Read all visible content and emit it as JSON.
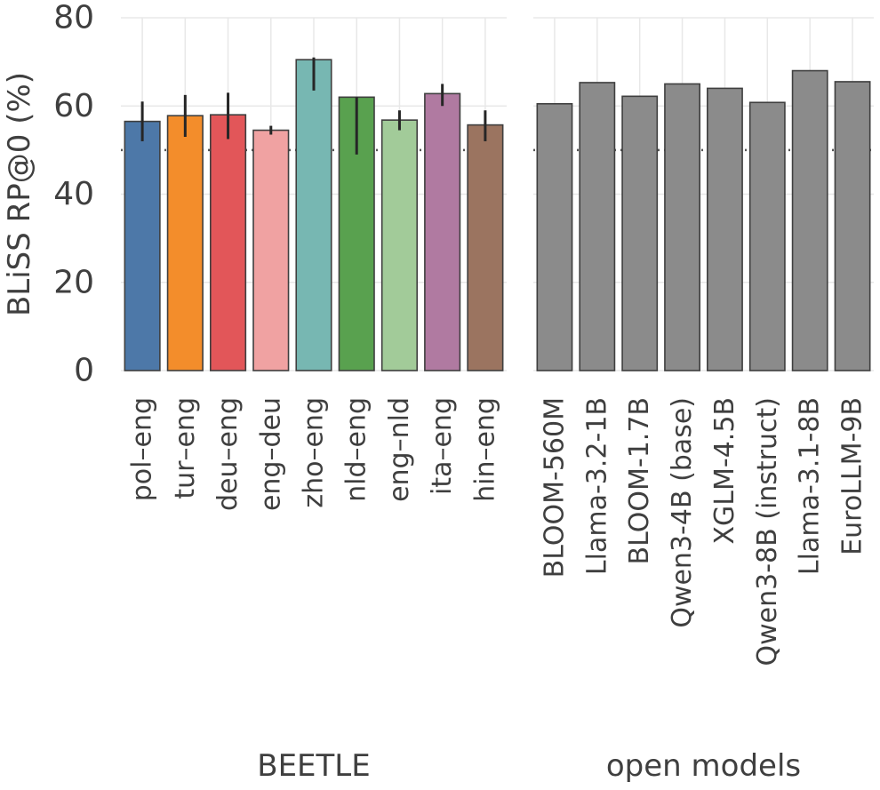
{
  "chart_data": [
    {
      "type": "bar",
      "panel": "left",
      "xlabel": "BEETLE",
      "ylabel": "BLiSS RP@0 (%)",
      "ylim": [
        0,
        80
      ],
      "yticks": [
        0,
        20,
        40,
        60,
        80
      ],
      "grid": true,
      "reference_line": 50,
      "categories": [
        "pol–eng",
        "tur–eng",
        "deu–eng",
        "eng–deu",
        "zho–eng",
        "nld–eng",
        "eng–nld",
        "ita–eng",
        "hin–eng"
      ],
      "values": [
        56.5,
        57.8,
        58.0,
        54.5,
        70.5,
        62.0,
        56.8,
        62.8,
        55.7
      ],
      "errors_lower": [
        52,
        53,
        52.5,
        53.5,
        63.5,
        49,
        54.5,
        60,
        52
      ],
      "errors_upper": [
        61,
        62.5,
        63,
        55.5,
        71,
        62,
        59,
        65,
        59
      ],
      "colors": [
        "#4d78a8",
        "#f38d2b",
        "#e25659",
        "#f0a2a2",
        "#77b7b2",
        "#59a14f",
        "#a2cb99",
        "#b07aa1",
        "#9b7460"
      ]
    },
    {
      "type": "bar",
      "panel": "right",
      "xlabel": "open models",
      "ylabel": "",
      "ylim": [
        0,
        80
      ],
      "yticks": [
        0,
        20,
        40,
        60,
        80
      ],
      "grid": true,
      "reference_line": 50,
      "categories": [
        "BLOOM-560M",
        "Llama-3.2-1B",
        "BLOOM-1.7B",
        "Qwen3-4B (base)",
        "XGLM-4.5B",
        "Qwen3-8B (instruct)",
        "Llama-3.1-8B",
        "EuroLLM-9B"
      ],
      "values": [
        60.5,
        65.3,
        62.2,
        65.0,
        64.0,
        60.8,
        68.0,
        65.5
      ],
      "colors": [
        "#8b8b8b",
        "#8b8b8b",
        "#8b8b8b",
        "#8b8b8b",
        "#8b8b8b",
        "#8b8b8b",
        "#8b8b8b",
        "#8b8b8b"
      ]
    }
  ]
}
